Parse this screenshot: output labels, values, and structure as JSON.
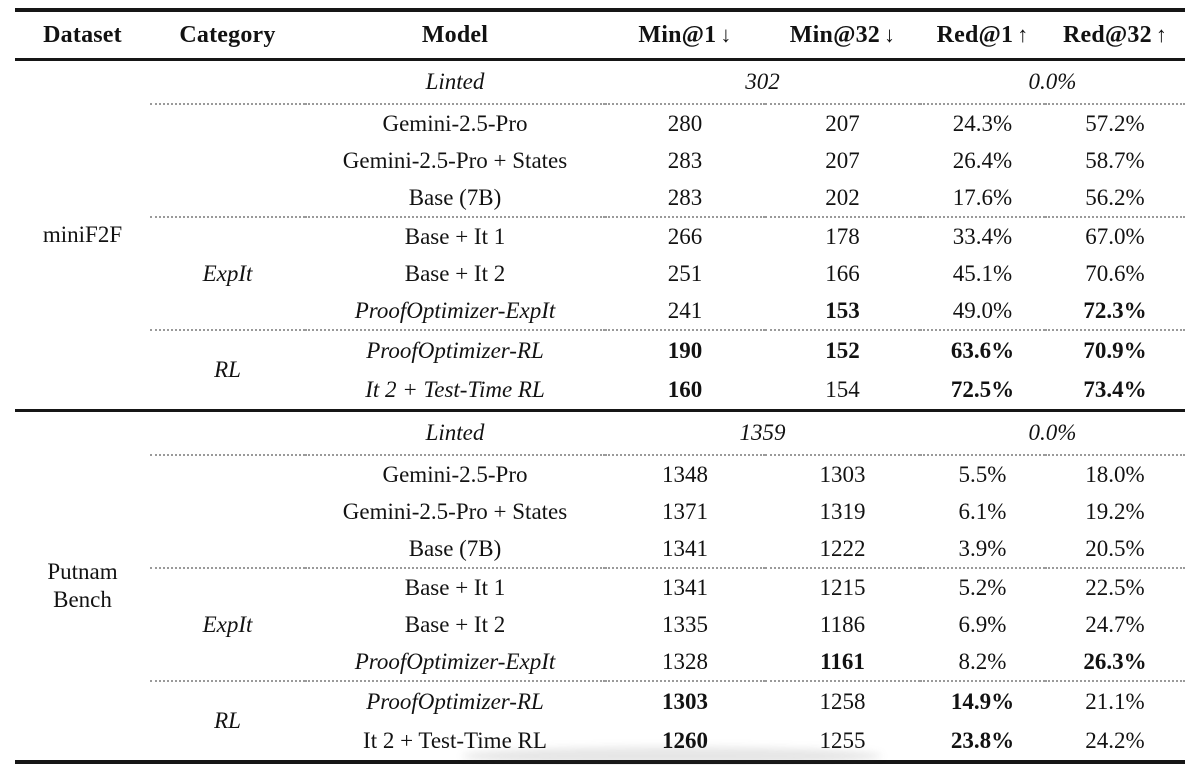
{
  "colors": {
    "rule": "#161616",
    "dotted_separator": "#9a9a9a",
    "text": "#121212",
    "background": "#ffffff"
  },
  "table": {
    "columns": [
      {
        "label": "Dataset",
        "arrow": ""
      },
      {
        "label": "Category",
        "arrow": ""
      },
      {
        "label": "Model",
        "arrow": ""
      },
      {
        "label": "Min@1",
        "arrow": "↓"
      },
      {
        "label": "Min@32",
        "arrow": "↓"
      },
      {
        "label": "Red@1",
        "arrow": "↑"
      },
      {
        "label": "Red@32",
        "arrow": "↑"
      }
    ],
    "sections": [
      {
        "dataset": "miniF2F",
        "linted": {
          "model": "Linted",
          "min": "302",
          "red": "0.0%"
        },
        "groups": [
          {
            "category": "",
            "rows": [
              {
                "model": "Gemini-2.5-Pro",
                "min1": "280",
                "min32": "207",
                "red1": "24.3%",
                "red32": "57.2%"
              },
              {
                "model": "Gemini-2.5-Pro + States",
                "min1": "283",
                "min32": "207",
                "red1": "26.4%",
                "red32": "58.7%"
              },
              {
                "model": "Base (7B)",
                "min1": "283",
                "min32": "202",
                "red1": "17.6%",
                "red32": "56.2%"
              }
            ]
          },
          {
            "category": "ExpIt",
            "rows": [
              {
                "model": "Base + It 1",
                "min1": "266",
                "min32": "178",
                "red1": "33.4%",
                "red32": "67.0%"
              },
              {
                "model": "Base + It 2",
                "min1": "251",
                "min32": "166",
                "red1": "45.1%",
                "red32": "70.6%"
              },
              {
                "model": "ProofOptimizer-ExpIt",
                "min1": "241",
                "min32": "153",
                "red1": "49.0%",
                "red32": "72.3%"
              }
            ]
          },
          {
            "category": "RL",
            "rows": [
              {
                "model": "ProofOptimizer-RL",
                "min1": "190",
                "min32": "152",
                "red1": "63.6%",
                "red32": "70.9%"
              },
              {
                "model": "It 2 + Test-Time RL",
                "min1": "160",
                "min32": "154",
                "red1": "72.5%",
                "red32": "73.4%"
              }
            ]
          }
        ]
      },
      {
        "dataset": "Putnam\nBench",
        "linted": {
          "model": "Linted",
          "min": "1359",
          "red": "0.0%"
        },
        "groups": [
          {
            "category": "",
            "rows": [
              {
                "model": "Gemini-2.5-Pro",
                "min1": "1348",
                "min32": "1303",
                "red1": "5.5%",
                "red32": "18.0%"
              },
              {
                "model": "Gemini-2.5-Pro + States",
                "min1": "1371",
                "min32": "1319",
                "red1": "6.1%",
                "red32": "19.2%"
              },
              {
                "model": "Base (7B)",
                "min1": "1341",
                "min32": "1222",
                "red1": "3.9%",
                "red32": "20.5%"
              }
            ]
          },
          {
            "category": "ExpIt",
            "rows": [
              {
                "model": "Base + It 1",
                "min1": "1341",
                "min32": "1215",
                "red1": "5.2%",
                "red32": "22.5%"
              },
              {
                "model": "Base + It 2",
                "min1": "1335",
                "min32": "1186",
                "red1": "6.9%",
                "red32": "24.7%"
              },
              {
                "model": "ProofOptimizer-ExpIt",
                "min1": "1328",
                "min32": "1161",
                "red1": "8.2%",
                "red32": "26.3%"
              }
            ]
          },
          {
            "category": "RL",
            "rows": [
              {
                "model": "ProofOptimizer-RL",
                "min1": "1303",
                "min32": "1258",
                "red1": "14.9%",
                "red32": "21.1%"
              },
              {
                "model": "It 2 + Test-Time RL",
                "min1": "1260",
                "min32": "1255",
                "red1": "23.8%",
                "red32": "24.2%"
              }
            ]
          }
        ]
      }
    ]
  }
}
